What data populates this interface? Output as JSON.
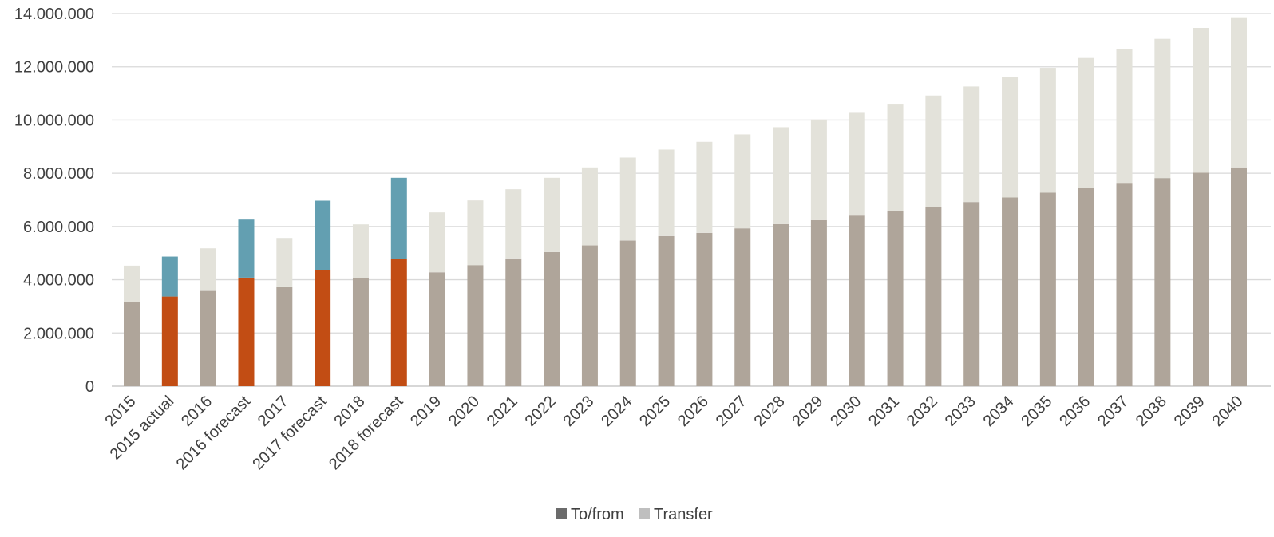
{
  "chart_data": {
    "type": "bar",
    "stacked": true,
    "title": "",
    "xlabel": "",
    "ylabel": "",
    "ylim": [
      0,
      14000000
    ],
    "yticks": [
      0,
      2000000,
      4000000,
      6000000,
      8000000,
      10000000,
      12000000,
      14000000
    ],
    "ytick_labels": [
      "0",
      "2.000.000",
      "4.000.000",
      "6.000.000",
      "8.000.000",
      "10.000.000",
      "12.000.000",
      "14.000.000"
    ],
    "grid": true,
    "legend_position": "bottom",
    "categories": [
      "2015",
      "2015 actual",
      "2016",
      "2016 forecast",
      "2017",
      "2017 forecast",
      "2018",
      "2018 forecast",
      "2019",
      "2020",
      "2021",
      "2022",
      "2023",
      "2024",
      "2025",
      "2026",
      "2027",
      "2028",
      "2029",
      "2030",
      "2031",
      "2032",
      "2033",
      "2034",
      "2035",
      "2036",
      "2037",
      "2038",
      "2039",
      "2040"
    ],
    "series": [
      {
        "name": "To/from",
        "legend_color": "#6b6b6b",
        "colors": [
          "#afa59a",
          "#c24d14",
          "#afa59a",
          "#c24d14",
          "#afa59a",
          "#c24d14",
          "#afa59a",
          "#c24d14",
          "#afa59a",
          "#afa59a",
          "#afa59a",
          "#afa59a",
          "#afa59a",
          "#afa59a",
          "#afa59a",
          "#afa59a",
          "#afa59a",
          "#afa59a",
          "#afa59a",
          "#afa59a",
          "#afa59a",
          "#afa59a",
          "#afa59a",
          "#afa59a",
          "#afa59a",
          "#afa59a",
          "#afa59a",
          "#afa59a",
          "#afa59a",
          "#afa59a"
        ],
        "values": [
          3150000,
          3370000,
          3580000,
          4080000,
          3720000,
          4370000,
          4050000,
          4780000,
          4280000,
          4550000,
          4800000,
          5040000,
          5290000,
          5470000,
          5640000,
          5760000,
          5930000,
          6090000,
          6240000,
          6410000,
          6570000,
          6730000,
          6920000,
          7090000,
          7270000,
          7450000,
          7640000,
          7820000,
          8020000,
          8220000
        ]
      },
      {
        "name": "Transfer",
        "legend_color": "#bfbfbf",
        "colors": [
          "#e3e2da",
          "#639fb1",
          "#e3e2da",
          "#639fb1",
          "#e3e2da",
          "#639fb1",
          "#e3e2da",
          "#639fb1",
          "#e3e2da",
          "#e3e2da",
          "#e3e2da",
          "#e3e2da",
          "#e3e2da",
          "#e3e2da",
          "#e3e2da",
          "#e3e2da",
          "#e3e2da",
          "#e3e2da",
          "#e3e2da",
          "#e3e2da",
          "#e3e2da",
          "#e3e2da",
          "#e3e2da",
          "#e3e2da",
          "#e3e2da",
          "#e3e2da",
          "#e3e2da",
          "#e3e2da",
          "#e3e2da",
          "#e3e2da"
        ],
        "values": [
          1380000,
          1500000,
          1600000,
          2180000,
          1850000,
          2600000,
          2030000,
          3050000,
          2250000,
          2430000,
          2600000,
          2790000,
          2930000,
          3120000,
          3250000,
          3420000,
          3530000,
          3640000,
          3780000,
          3890000,
          4040000,
          4190000,
          4340000,
          4530000,
          4690000,
          4880000,
          5030000,
          5230000,
          5440000,
          5640000
        ]
      }
    ]
  }
}
